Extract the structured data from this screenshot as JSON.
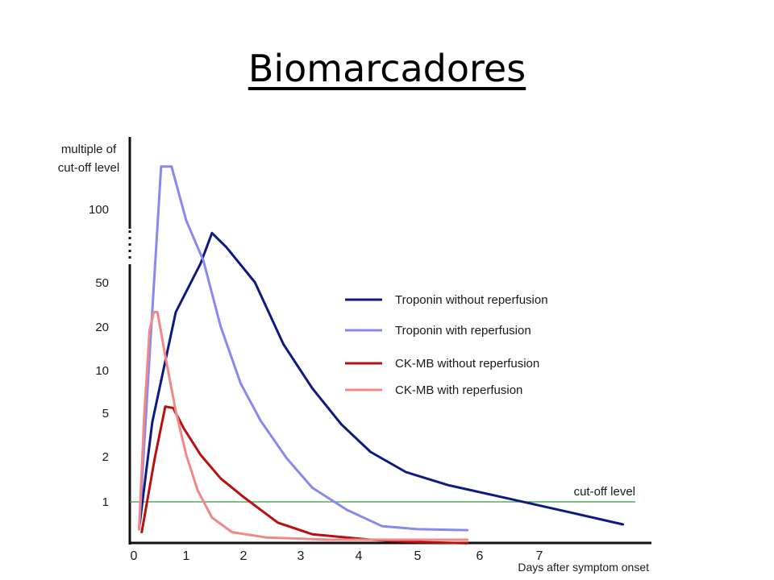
{
  "slide": {
    "title": "Biomarcadores"
  },
  "chart_data": {
    "type": "line",
    "title": "",
    "xlabel": "Days after symptom onset",
    "ylabel": "multiple of\ncut-off level",
    "x_ticks": [
      "0",
      "1",
      "2",
      "3",
      "4",
      "5",
      "6",
      "7"
    ],
    "y_ticks": [
      "100",
      "50",
      "20",
      "10",
      "5",
      "2",
      "1"
    ],
    "y_scale": "log (broken axis above 50)",
    "xlim": [
      0,
      8.5
    ],
    "legend_position": "right",
    "series": [
      {
        "name": "Troponin without reperfusion",
        "color": "#0d1a80",
        "points": [
          [
            0.1,
            0.65
          ],
          [
            0.35,
            3.5
          ],
          [
            0.8,
            20
          ],
          [
            1.25,
            60
          ],
          [
            1.45,
            80
          ],
          [
            1.7,
            70
          ],
          [
            2.2,
            32
          ],
          [
            2.7,
            12
          ],
          [
            3.2,
            6
          ],
          [
            3.7,
            3.4
          ],
          [
            4.2,
            2.2
          ],
          [
            4.8,
            1.6
          ],
          [
            5.5,
            1.3
          ],
          [
            6.5,
            1.05
          ],
          [
            7.5,
            0.85
          ],
          [
            8.4,
            0.7
          ]
        ]
      },
      {
        "name": "Troponin with reperfusion",
        "color": "#8888ee",
        "points": [
          [
            0.1,
            0.65
          ],
          [
            0.3,
            10
          ],
          [
            0.52,
            150
          ],
          [
            0.72,
            150
          ],
          [
            1.0,
            90
          ],
          [
            1.3,
            45
          ],
          [
            1.6,
            16
          ],
          [
            1.95,
            6.5
          ],
          [
            2.3,
            3.6
          ],
          [
            2.75,
            2.0
          ],
          [
            3.2,
            1.25
          ],
          [
            3.8,
            0.88
          ],
          [
            4.4,
            0.68
          ],
          [
            5.0,
            0.65
          ],
          [
            5.8,
            0.64
          ]
        ]
      },
      {
        "name": "CK-MB without reperfusion",
        "color": "#b81010",
        "points": [
          [
            0.15,
            0.62
          ],
          [
            0.4,
            2.0
          ],
          [
            0.6,
            4.5
          ],
          [
            0.75,
            4.4
          ],
          [
            0.95,
            3.2
          ],
          [
            1.25,
            2.1
          ],
          [
            1.6,
            1.45
          ],
          [
            2.0,
            1.08
          ],
          [
            2.6,
            0.72
          ],
          [
            3.2,
            0.6
          ],
          [
            4.2,
            0.55
          ],
          [
            5.0,
            0.53
          ],
          [
            5.8,
            0.52
          ]
        ]
      },
      {
        "name": "CK-MB with reperfusion",
        "color": "#f08888",
        "points": [
          [
            0.1,
            0.65
          ],
          [
            0.2,
            4
          ],
          [
            0.3,
            15
          ],
          [
            0.38,
            20
          ],
          [
            0.45,
            20
          ],
          [
            0.6,
            10
          ],
          [
            0.8,
            4.2
          ],
          [
            1.0,
            2.1
          ],
          [
            1.2,
            1.2
          ],
          [
            1.45,
            0.78
          ],
          [
            1.8,
            0.62
          ],
          [
            2.4,
            0.57
          ],
          [
            3.5,
            0.55
          ],
          [
            4.5,
            0.55
          ],
          [
            5.8,
            0.55
          ]
        ]
      }
    ],
    "reference_line": {
      "label": "cut-off level",
      "y": 1,
      "color": "#3a9a3a"
    }
  }
}
